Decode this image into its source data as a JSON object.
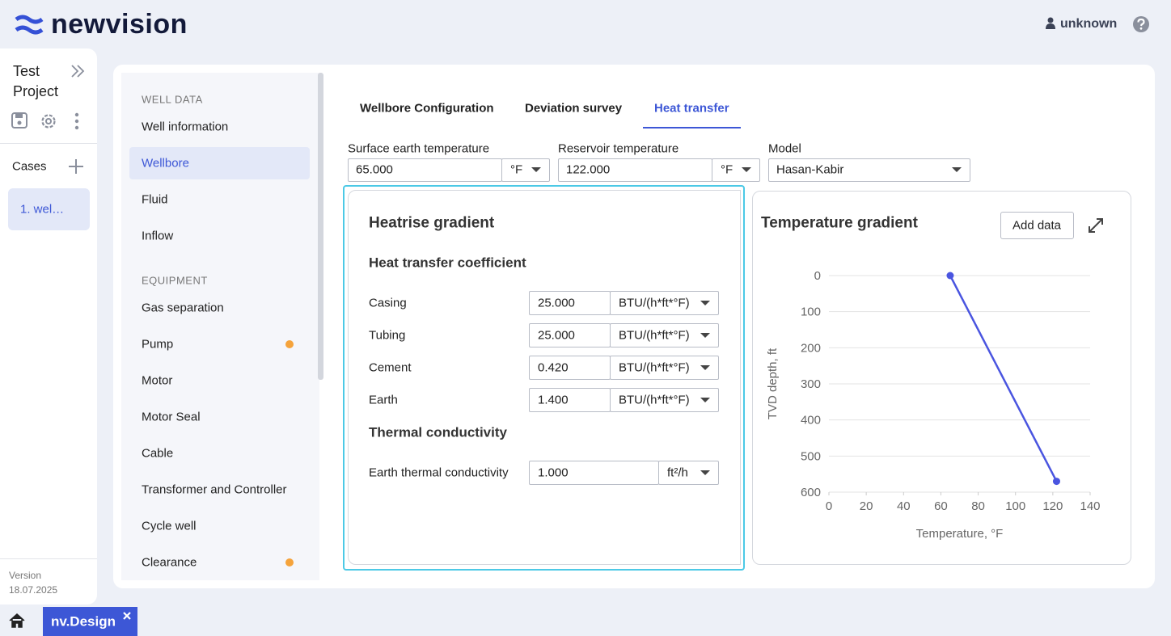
{
  "header": {
    "logo": "newvision",
    "user": "unknown"
  },
  "project": {
    "title": "Test Project",
    "cases_label": "Cases",
    "cases": [
      "1. wel…"
    ],
    "version_label": "Version",
    "version": "18.07.2025"
  },
  "nav": [
    {
      "title": "WELL DATA",
      "items": [
        {
          "label": "Well information"
        },
        {
          "label": "Wellbore",
          "selected": true
        },
        {
          "label": "Fluid"
        },
        {
          "label": "Inflow"
        }
      ]
    },
    {
      "title": "EQUIPMENT",
      "items": [
        {
          "label": "Gas separation"
        },
        {
          "label": "Pump",
          "flag": true
        },
        {
          "label": "Motor"
        },
        {
          "label": "Motor Seal"
        },
        {
          "label": "Cable"
        },
        {
          "label": "Transformer and Controller"
        },
        {
          "label": "Cycle well"
        },
        {
          "label": "Clearance",
          "flag": true
        }
      ]
    }
  ],
  "tabs": [
    {
      "label": "Wellbore Configuration"
    },
    {
      "label": "Deviation survey"
    },
    {
      "label": "Heat transfer",
      "active": true
    }
  ],
  "fields": [
    {
      "label": "Surface earth temperature",
      "value": "65.000",
      "unit": "°F"
    },
    {
      "label": "Reservoir temperature",
      "value": "122.000",
      "unit": "°F"
    },
    {
      "label": "Model",
      "value": "Hasan-Kabir"
    }
  ],
  "heat_panel": {
    "title": "Heatrise gradient",
    "sections": [
      {
        "title": "Heat transfer coefficient",
        "rows": [
          {
            "label": "Casing",
            "value": "25.000",
            "unit": "BTU/(h*ft*°F)"
          },
          {
            "label": "Tubing",
            "value": "25.000",
            "unit": "BTU/(h*ft*°F)"
          },
          {
            "label": "Cement",
            "value": "0.420",
            "unit": "BTU/(h*ft*°F)"
          },
          {
            "label": "Earth",
            "value": "1.400",
            "unit": "BTU/(h*ft*°F)"
          }
        ]
      },
      {
        "title": "Thermal conductivity",
        "rows": [
          {
            "label": "Earth thermal conductivity",
            "value": "1.000",
            "unit": "ft²/h"
          }
        ]
      }
    ]
  },
  "chart_button": "Add data",
  "chart_data": {
    "type": "line",
    "title": "Temperature gradient",
    "x": [
      65,
      122
    ],
    "values": [
      0,
      570
    ],
    "color": "#4a55e0",
    "xlim": [
      0,
      140
    ],
    "xticks": [
      0,
      20,
      40,
      60,
      80,
      100,
      120,
      140
    ],
    "ylim": [
      0,
      600
    ],
    "yticks": [
      0,
      100,
      200,
      300,
      400,
      500,
      600
    ],
    "y_inverted": true,
    "grid": true,
    "xlabel": "Temperature, °F",
    "ylabel": "TVD depth, ft"
  },
  "app_tab": "nv.Design"
}
